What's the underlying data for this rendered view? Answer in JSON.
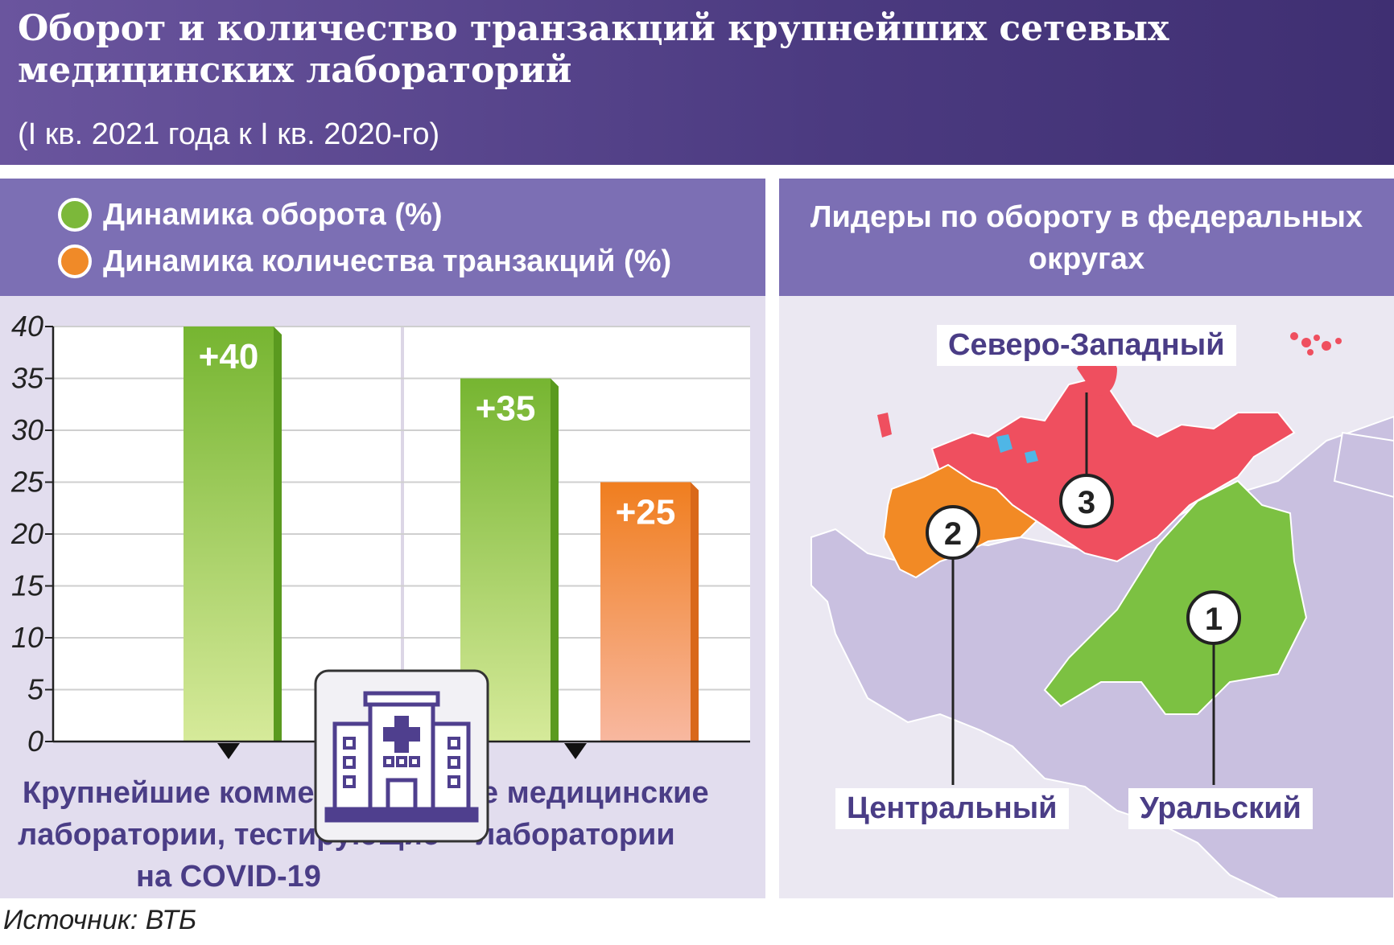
{
  "header": {
    "title": "Оборот и количество транзакций крупнейших сетевых медицинских лабораторий",
    "subtitle": "(I кв. 2021 года к I кв. 2020-го)"
  },
  "legend": {
    "turnover_label": "Динамика оборота (%)",
    "transactions_label": "Динамика количества транзакций (%)"
  },
  "colors": {
    "turnover": "#7cb83a",
    "transactions": "#f08a28",
    "northwest": "#ef4f5f",
    "central": "#f28a25",
    "ural": "#7cc142",
    "other": "#c9c0e0"
  },
  "chart_data": {
    "type": "bar",
    "title": "",
    "xlabel": "",
    "ylabel": "",
    "ylim": [
      0,
      40
    ],
    "yticks": [
      "0",
      "5",
      "10",
      "15",
      "20",
      "25",
      "30",
      "35",
      "40"
    ],
    "categories": [
      "Крупнейшие коммерческие лаборатории, тестирующие на COVID-19",
      "Все медицинские лаборатории"
    ],
    "category_lines": [
      [
        "Крупнейшие коммерческие",
        "лаборатории, тестирующие",
        "на COVID-19"
      ],
      [
        "Все медицинские",
        "лаборатории"
      ]
    ],
    "series": [
      {
        "name": "Динамика оборота (%)",
        "values": [
          40,
          35
        ],
        "labels": [
          "+40",
          "+35"
        ]
      },
      {
        "name": "Динамика количества транзакций (%)",
        "values": [
          null,
          25
        ],
        "labels": [
          "",
          "+25"
        ]
      }
    ],
    "legend_position": "top-left",
    "grid": true
  },
  "map": {
    "title": "Лидеры по обороту в федеральных округах",
    "regions": [
      {
        "name": "Северо-Западный",
        "rank": "3"
      },
      {
        "name": "Центральный",
        "rank": "2"
      },
      {
        "name": "Уральский",
        "rank": "1"
      }
    ]
  },
  "source": "Источник: ВТБ"
}
